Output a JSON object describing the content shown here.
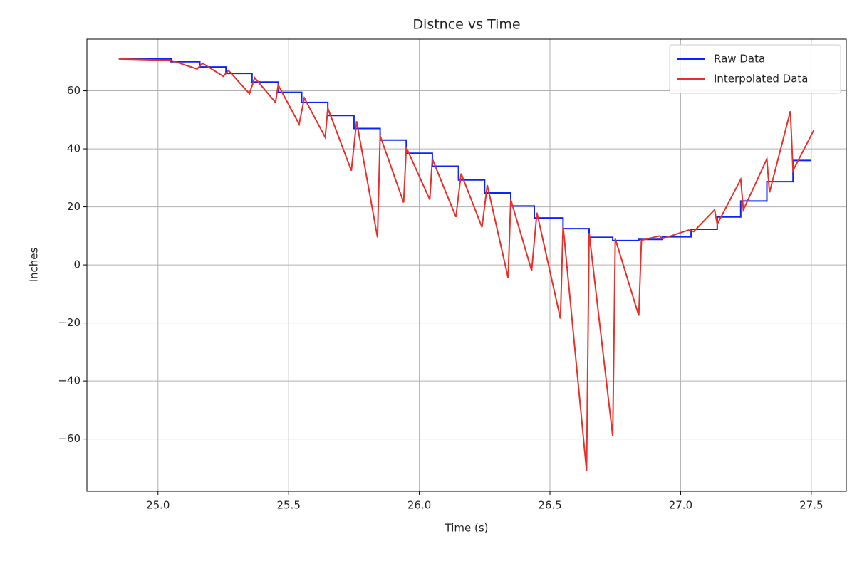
{
  "chart_data": {
    "type": "line",
    "title": "Distnce vs Time",
    "xlabel": "Time (s)",
    "ylabel": "Inches",
    "xlim": [
      24.728,
      27.634
    ],
    "ylim": [
      -78.0,
      77.8
    ],
    "xticks": [
      {
        "value": 25,
        "label": "25.0"
      },
      25.5,
      {
        "value": 26,
        "label": "26.0"
      },
      26.5,
      {
        "value": 27,
        "label": "27.0"
      },
      27.5
    ],
    "yticks": [
      {
        "value": -60,
        "label": "−60"
      },
      {
        "value": -40,
        "label": "−40"
      },
      {
        "value": -20,
        "label": "−20"
      },
      0,
      20,
      40,
      60
    ],
    "grid": true,
    "legend": "upper right",
    "series": [
      {
        "name": "Raw Data",
        "color": "#0b24fb",
        "x": [
          24.85,
          25.05,
          25.05,
          25.16,
          25.16,
          25.26,
          25.26,
          25.36,
          25.36,
          25.46,
          25.46,
          25.55,
          25.55,
          25.65,
          25.65,
          25.75,
          25.75,
          25.85,
          25.85,
          25.95,
          25.95,
          26.05,
          26.05,
          26.15,
          26.15,
          26.25,
          26.25,
          26.35,
          26.35,
          26.44,
          26.44,
          26.55,
          26.55,
          26.65,
          26.65,
          26.74,
          26.74,
          26.84,
          26.84,
          26.93,
          26.93,
          27.04,
          27.04,
          27.14,
          27.14,
          27.23,
          27.23,
          27.33,
          27.33,
          27.43,
          27.43,
          27.5
        ],
        "values": [
          71,
          71,
          70,
          70,
          68.2,
          68.2,
          66,
          66,
          63,
          63,
          59.5,
          59.5,
          56,
          56,
          51.5,
          51.5,
          47,
          47,
          43,
          43,
          38.5,
          38.5,
          34,
          34,
          29.3,
          29.3,
          24.8,
          24.8,
          20.3,
          20.3,
          16.2,
          16.2,
          12.5,
          12.5,
          9.5,
          9.5,
          8.4,
          8.4,
          8.8,
          8.8,
          9.7,
          9.7,
          12.3,
          12.3,
          16.5,
          16.5,
          22,
          22,
          28.7,
          28.7,
          36,
          36
        ]
      },
      {
        "name": "Interpolated Data",
        "color": "#e8302a",
        "x": [
          24.85,
          25.05,
          25.15,
          25.17,
          25.25,
          25.27,
          25.35,
          25.37,
          25.45,
          25.46,
          25.54,
          25.56,
          25.64,
          25.65,
          25.74,
          25.76,
          25.84,
          25.85,
          25.94,
          25.95,
          26.04,
          26.05,
          26.14,
          26.16,
          26.24,
          26.26,
          26.34,
          26.35,
          26.43,
          26.45,
          26.54,
          26.55,
          26.64,
          26.65,
          26.74,
          26.75,
          26.84,
          26.85,
          26.92,
          26.93,
          27.03,
          27.05,
          27.13,
          27.14,
          27.23,
          27.24,
          27.33,
          27.34,
          27.42,
          27.43,
          27.51
        ],
        "values": [
          71,
          70.5,
          67.5,
          69.5,
          65,
          67,
          59,
          64.5,
          56,
          62,
          48.5,
          57.5,
          44,
          54,
          32.5,
          49.5,
          9.5,
          44.5,
          21.5,
          40.5,
          22.5,
          36.5,
          16.5,
          31.5,
          13,
          27.5,
          -4.5,
          22.5,
          -2,
          18,
          -18.5,
          13.5,
          -71,
          11,
          -59,
          9,
          -17.5,
          8.5,
          10,
          9,
          12,
          11.5,
          19,
          14,
          29.5,
          19,
          36.5,
          25,
          53,
          32.5,
          46.5
        ]
      }
    ]
  }
}
